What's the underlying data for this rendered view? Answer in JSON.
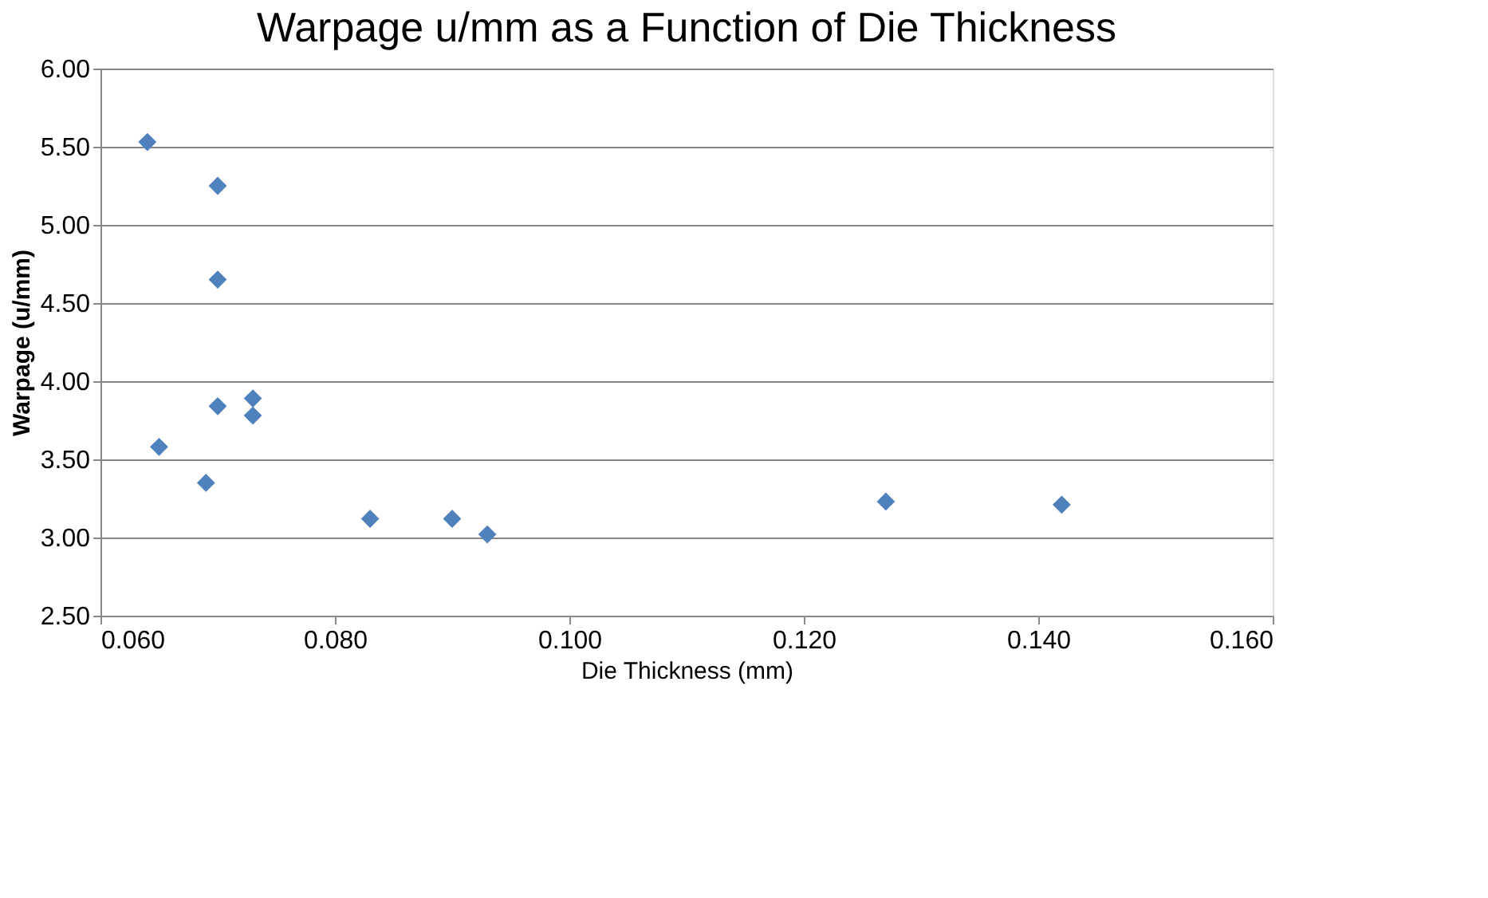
{
  "chart_data": {
    "type": "scatter",
    "title": "Warpage u/mm as a Function of Die Thickness",
    "xlabel": "Die Thickness (mm)",
    "ylabel": "Warpage (u/mm)",
    "x": [
      0.064,
      0.07,
      0.07,
      0.073,
      0.073,
      0.07,
      0.065,
      0.069,
      0.083,
      0.09,
      0.093,
      0.127,
      0.142
    ],
    "series": [
      {
        "color": "#4f81bd",
        "values": [
          5.53,
          5.25,
          4.65,
          3.89,
          3.78,
          3.84,
          3.58,
          3.35,
          3.12,
          3.12,
          3.02,
          3.23,
          3.21
        ]
      }
    ],
    "xlim": [
      0.06,
      0.16
    ],
    "xticks": [
      {
        "value": 0.06,
        "label": "0.060"
      },
      {
        "value": 0.08,
        "label": "0.080"
      },
      {
        "value": 0.1,
        "label": "0.100"
      },
      {
        "value": 0.12,
        "label": "0.120"
      },
      {
        "value": 0.14,
        "label": "0.140"
      },
      {
        "value": 0.16,
        "label": "0.160"
      }
    ],
    "ylim": [
      2.5,
      6.0
    ],
    "yticks": [
      {
        "value": 2.5,
        "label": "2.50"
      },
      {
        "value": 3.0,
        "label": "3.00"
      },
      {
        "value": 3.5,
        "label": "3.50"
      },
      {
        "value": 4.0,
        "label": "4.00"
      },
      {
        "value": 4.5,
        "label": "4.50"
      },
      {
        "value": 5.0,
        "label": "5.00"
      },
      {
        "value": 5.5,
        "label": "5.50"
      },
      {
        "value": 6.0,
        "label": "6.00"
      }
    ],
    "grid": "y",
    "marker": "diamond",
    "legend": false
  }
}
